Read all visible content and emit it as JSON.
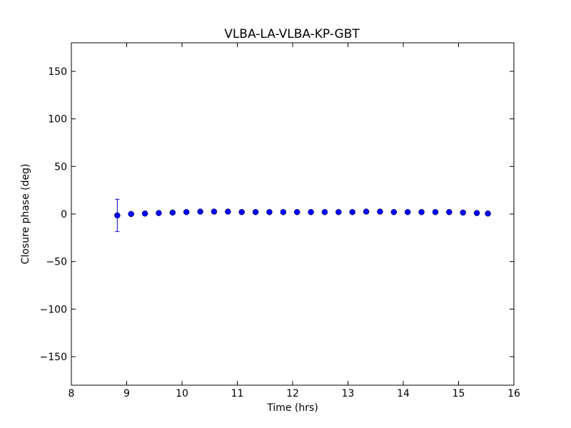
{
  "chart_data": {
    "type": "scatter",
    "title": "VLBA-LA-VLBA-KP-GBT",
    "xlabel": "Time (hrs)",
    "ylabel": "Closure phase (deg)",
    "xlim": [
      8,
      16
    ],
    "ylim": [
      -180,
      180
    ],
    "xticks": [
      8,
      9,
      10,
      11,
      12,
      13,
      14,
      15,
      16
    ],
    "yticks": [
      -150,
      -100,
      -50,
      0,
      50,
      100,
      150
    ],
    "xtick_labels": [
      "8",
      "9",
      "10",
      "11",
      "12",
      "13",
      "14",
      "15",
      "16"
    ],
    "ytick_labels": [
      "−150",
      "−100",
      "−50",
      "0",
      "50",
      "100",
      "150"
    ],
    "grid": false,
    "marker_color": "#0000ff",
    "errorbar_color": "#0000cc",
    "points": [
      {
        "x": 8.83,
        "y": -1.5,
        "yerr": 17
      },
      {
        "x": 9.08,
        "y": 0.0,
        "yerr": 1
      },
      {
        "x": 9.33,
        "y": 0.5,
        "yerr": 1
      },
      {
        "x": 9.58,
        "y": 1.0,
        "yerr": 1
      },
      {
        "x": 9.83,
        "y": 1.5,
        "yerr": 1
      },
      {
        "x": 10.08,
        "y": 2.0,
        "yerr": 1
      },
      {
        "x": 10.33,
        "y": 2.5,
        "yerr": 1
      },
      {
        "x": 10.58,
        "y": 2.5,
        "yerr": 1
      },
      {
        "x": 10.83,
        "y": 2.5,
        "yerr": 1
      },
      {
        "x": 11.08,
        "y": 2.0,
        "yerr": 1
      },
      {
        "x": 11.33,
        "y": 2.0,
        "yerr": 1
      },
      {
        "x": 11.58,
        "y": 2.0,
        "yerr": 1
      },
      {
        "x": 11.83,
        "y": 2.0,
        "yerr": 1
      },
      {
        "x": 12.08,
        "y": 2.0,
        "yerr": 1
      },
      {
        "x": 12.33,
        "y": 2.0,
        "yerr": 1
      },
      {
        "x": 12.58,
        "y": 2.0,
        "yerr": 1
      },
      {
        "x": 12.83,
        "y": 2.0,
        "yerr": 1
      },
      {
        "x": 13.08,
        "y": 2.0,
        "yerr": 1
      },
      {
        "x": 13.33,
        "y": 2.5,
        "yerr": 1
      },
      {
        "x": 13.58,
        "y": 2.5,
        "yerr": 1
      },
      {
        "x": 13.83,
        "y": 2.0,
        "yerr": 1
      },
      {
        "x": 14.08,
        "y": 2.0,
        "yerr": 1
      },
      {
        "x": 14.33,
        "y": 2.0,
        "yerr": 1
      },
      {
        "x": 14.58,
        "y": 2.0,
        "yerr": 1
      },
      {
        "x": 14.83,
        "y": 2.0,
        "yerr": 1
      },
      {
        "x": 15.08,
        "y": 1.5,
        "yerr": 1
      },
      {
        "x": 15.33,
        "y": 1.0,
        "yerr": 1
      },
      {
        "x": 15.53,
        "y": 0.5,
        "yerr": 1
      }
    ]
  }
}
